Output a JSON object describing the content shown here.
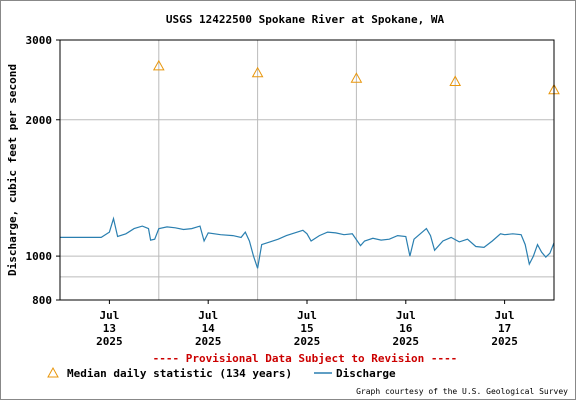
{
  "colors": {
    "discharge": "#2a7fb0",
    "median": "#e8960c",
    "provisional": "#cc0000",
    "grid": "#bbbbbb"
  },
  "chart_data": {
    "type": "line",
    "title": "USGS 12422500 Spokane River at Spokane, WA",
    "ylabel": "Discharge, cubic feet per second",
    "yscale": "log",
    "ylim": [
      800,
      3000
    ],
    "yticks": [
      800,
      1000,
      2000,
      3000
    ],
    "grid": true,
    "xlim": [
      "2025-07-12T12:00",
      "2025-07-17T12:00"
    ],
    "xticks": [
      {
        "at": "2025-07-13T00:00",
        "month": "Jul",
        "day": "13",
        "year": "2025"
      },
      {
        "at": "2025-07-14T00:00",
        "month": "Jul",
        "day": "14",
        "year": "2025"
      },
      {
        "at": "2025-07-15T00:00",
        "month": "Jul",
        "day": "15",
        "year": "2025"
      },
      {
        "at": "2025-07-16T00:00",
        "month": "Jul",
        "day": "16",
        "year": "2025"
      },
      {
        "at": "2025-07-17T00:00",
        "month": "Jul",
        "day": "17",
        "year": "2025"
      }
    ],
    "series": [
      {
        "name": "Discharge",
        "style": "line",
        "points": [
          [
            "2025-07-12T12:00",
            1100
          ],
          [
            "2025-07-12T18:00",
            1100
          ],
          [
            "2025-07-12T22:00",
            1100
          ],
          [
            "2025-07-13T00:00",
            1130
          ],
          [
            "2025-07-13T01:00",
            1210
          ],
          [
            "2025-07-13T02:00",
            1105
          ],
          [
            "2025-07-13T04:00",
            1120
          ],
          [
            "2025-07-13T06:00",
            1150
          ],
          [
            "2025-07-13T08:00",
            1165
          ],
          [
            "2025-07-13T09:30",
            1150
          ],
          [
            "2025-07-13T10:00",
            1085
          ],
          [
            "2025-07-13T11:00",
            1090
          ],
          [
            "2025-07-13T12:00",
            1150
          ],
          [
            "2025-07-13T14:00",
            1160
          ],
          [
            "2025-07-13T16:00",
            1155
          ],
          [
            "2025-07-13T18:00",
            1145
          ],
          [
            "2025-07-13T20:00",
            1150
          ],
          [
            "2025-07-13T22:00",
            1165
          ],
          [
            "2025-07-13T23:00",
            1080
          ],
          [
            "2025-07-14T00:00",
            1125
          ],
          [
            "2025-07-14T03:00",
            1115
          ],
          [
            "2025-07-14T06:00",
            1110
          ],
          [
            "2025-07-14T08:00",
            1100
          ],
          [
            "2025-07-14T09:00",
            1130
          ],
          [
            "2025-07-14T10:00",
            1080
          ],
          [
            "2025-07-14T11:00",
            1000
          ],
          [
            "2025-07-14T12:00",
            940
          ],
          [
            "2025-07-14T13:00",
            1060
          ],
          [
            "2025-07-14T15:00",
            1075
          ],
          [
            "2025-07-14T17:00",
            1090
          ],
          [
            "2025-07-14T19:00",
            1110
          ],
          [
            "2025-07-14T21:00",
            1125
          ],
          [
            "2025-07-14T23:00",
            1140
          ],
          [
            "2025-07-15T00:00",
            1120
          ],
          [
            "2025-07-15T01:00",
            1080
          ],
          [
            "2025-07-15T03:00",
            1110
          ],
          [
            "2025-07-15T05:00",
            1130
          ],
          [
            "2025-07-15T07:00",
            1125
          ],
          [
            "2025-07-15T09:00",
            1115
          ],
          [
            "2025-07-15T11:00",
            1120
          ],
          [
            "2025-07-15T13:00",
            1055
          ],
          [
            "2025-07-15T14:00",
            1080
          ],
          [
            "2025-07-15T16:00",
            1095
          ],
          [
            "2025-07-15T18:00",
            1085
          ],
          [
            "2025-07-15T20:00",
            1090
          ],
          [
            "2025-07-15T22:00",
            1110
          ],
          [
            "2025-07-16T00:00",
            1105
          ],
          [
            "2025-07-16T01:00",
            1000
          ],
          [
            "2025-07-16T02:00",
            1090
          ],
          [
            "2025-07-16T04:00",
            1130
          ],
          [
            "2025-07-16T05:00",
            1150
          ],
          [
            "2025-07-16T06:00",
            1110
          ],
          [
            "2025-07-16T07:00",
            1030
          ],
          [
            "2025-07-16T09:00",
            1080
          ],
          [
            "2025-07-16T11:00",
            1100
          ],
          [
            "2025-07-16T13:00",
            1075
          ],
          [
            "2025-07-16T15:00",
            1090
          ],
          [
            "2025-07-16T17:00",
            1050
          ],
          [
            "2025-07-16T19:00",
            1045
          ],
          [
            "2025-07-16T21:00",
            1080
          ],
          [
            "2025-07-16T23:00",
            1120
          ],
          [
            "2025-07-17T00:00",
            1115
          ],
          [
            "2025-07-17T02:00",
            1120
          ],
          [
            "2025-07-17T04:00",
            1115
          ],
          [
            "2025-07-17T05:00",
            1060
          ],
          [
            "2025-07-17T06:00",
            960
          ],
          [
            "2025-07-17T07:00",
            1000
          ],
          [
            "2025-07-17T08:00",
            1060
          ],
          [
            "2025-07-17T09:00",
            1020
          ],
          [
            "2025-07-17T10:00",
            995
          ],
          [
            "2025-07-17T11:00",
            1015
          ],
          [
            "2025-07-17T12:00",
            1070
          ]
        ]
      },
      {
        "name": "Median daily statistic (134 years)",
        "style": "triangle",
        "points": [
          [
            "2025-07-13T12:00",
            2630
          ],
          [
            "2025-07-14T12:00",
            2540
          ],
          [
            "2025-07-15T12:00",
            2470
          ],
          [
            "2025-07-16T12:00",
            2430
          ],
          [
            "2025-07-17T12:00",
            2330
          ]
        ]
      }
    ],
    "annotations": [
      "---- Provisional Data Subject to Revision ----"
    ],
    "legend": {
      "placement": "bottom-left",
      "entries": [
        "Median daily statistic (134 years)",
        "Discharge"
      ]
    },
    "credit": "Graph courtesy of the U.S. Geological Survey"
  }
}
